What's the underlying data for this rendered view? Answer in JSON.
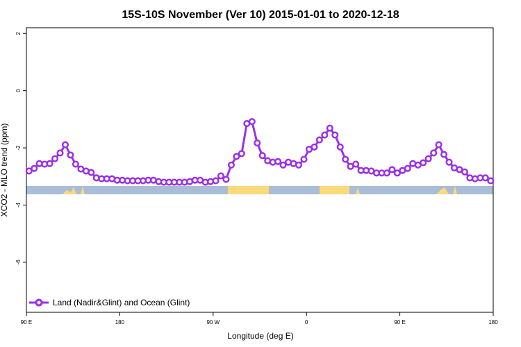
{
  "chart_data": {
    "type": "line",
    "title": "15S-10S November (Ver 10)   2015-01-01 to 2020-12-18",
    "x_label": "Longitude (deg E)",
    "y_label": "XCO2 - MLO trend (ppm)",
    "xlim": [
      90,
      540
    ],
    "ylim": [
      -7.75,
      2.2
    ],
    "xticks": [
      {
        "value": 90,
        "label": "90 E"
      },
      180,
      {
        "value": 270,
        "label": "90 W"
      },
      {
        "value": 360,
        "label": "0"
      },
      {
        "value": 450,
        "label": "90 E"
      },
      {
        "value": 540,
        "label": "180"
      }
    ],
    "yticks": [
      2,
      0,
      -2,
      -4,
      -6
    ],
    "legend": "bottom-left",
    "x": [
      92.5,
      97.5,
      102.5,
      107.5,
      112.5,
      117.5,
      122.5,
      127.5,
      132.5,
      137.5,
      142.5,
      147.5,
      152.5,
      157.5,
      162.5,
      167.5,
      172.5,
      177.5,
      182.5,
      187.5,
      192.5,
      197.5,
      202.5,
      207.5,
      212.5,
      217.5,
      222.5,
      227.5,
      232.5,
      237.5,
      242.5,
      247.5,
      252.5,
      257.5,
      262.5,
      267.5,
      272.5,
      277.5,
      282.5,
      287.5,
      292.5,
      297.5,
      302.5,
      307.5,
      312.5,
      317.5,
      322.5,
      327.5,
      332.5,
      337.5,
      342.5,
      347.5,
      352.5,
      357.5,
      362.5,
      367.5,
      372.5,
      377.5,
      382.5,
      387.5,
      392.5,
      397.5,
      402.5,
      407.5,
      412.5,
      417.5,
      422.5,
      427.5,
      432.5,
      437.5,
      442.5,
      447.5,
      452.5,
      457.5,
      462.5,
      467.5,
      472.5,
      477.5,
      482.5,
      487.5,
      492.5,
      497.5,
      502.5,
      507.5,
      512.5,
      517.5,
      522.5,
      527.5,
      532.5,
      537.5
    ],
    "series": [
      {
        "name": "Land (Nadir&Glint) and Ocean (Glint)",
        "color": "#9b30e8",
        "values": [
          -2.81,
          -2.72,
          -2.55,
          -2.57,
          -2.55,
          -2.38,
          -2.18,
          -1.89,
          -2.25,
          -2.57,
          -2.74,
          -2.81,
          -2.86,
          -3.05,
          -3.08,
          -3.08,
          -3.08,
          -3.13,
          -3.13,
          -3.15,
          -3.15,
          -3.15,
          -3.15,
          -3.13,
          -3.13,
          -3.18,
          -3.2,
          -3.2,
          -3.2,
          -3.2,
          -3.2,
          -3.18,
          -3.13,
          -3.13,
          -3.2,
          -3.18,
          -3.15,
          -2.98,
          -3.1,
          -2.6,
          -2.3,
          -2.2,
          -1.15,
          -1.08,
          -1.83,
          -2.27,
          -2.45,
          -2.5,
          -2.48,
          -2.6,
          -2.5,
          -2.55,
          -2.6,
          -2.4,
          -2.05,
          -1.97,
          -1.72,
          -1.55,
          -1.31,
          -1.55,
          -1.97,
          -2.4,
          -2.65,
          -2.57,
          -2.79,
          -2.79,
          -2.81,
          -2.88,
          -2.88,
          -2.88,
          -2.76,
          -2.88,
          -2.79,
          -2.72,
          -2.55,
          -2.6,
          -2.52,
          -2.38,
          -2.18,
          -1.89,
          -2.23,
          -2.5,
          -2.7,
          -2.76,
          -2.84,
          -3.05,
          -3.08,
          -3.05,
          -3.05,
          -3.15
        ]
      }
    ]
  }
}
